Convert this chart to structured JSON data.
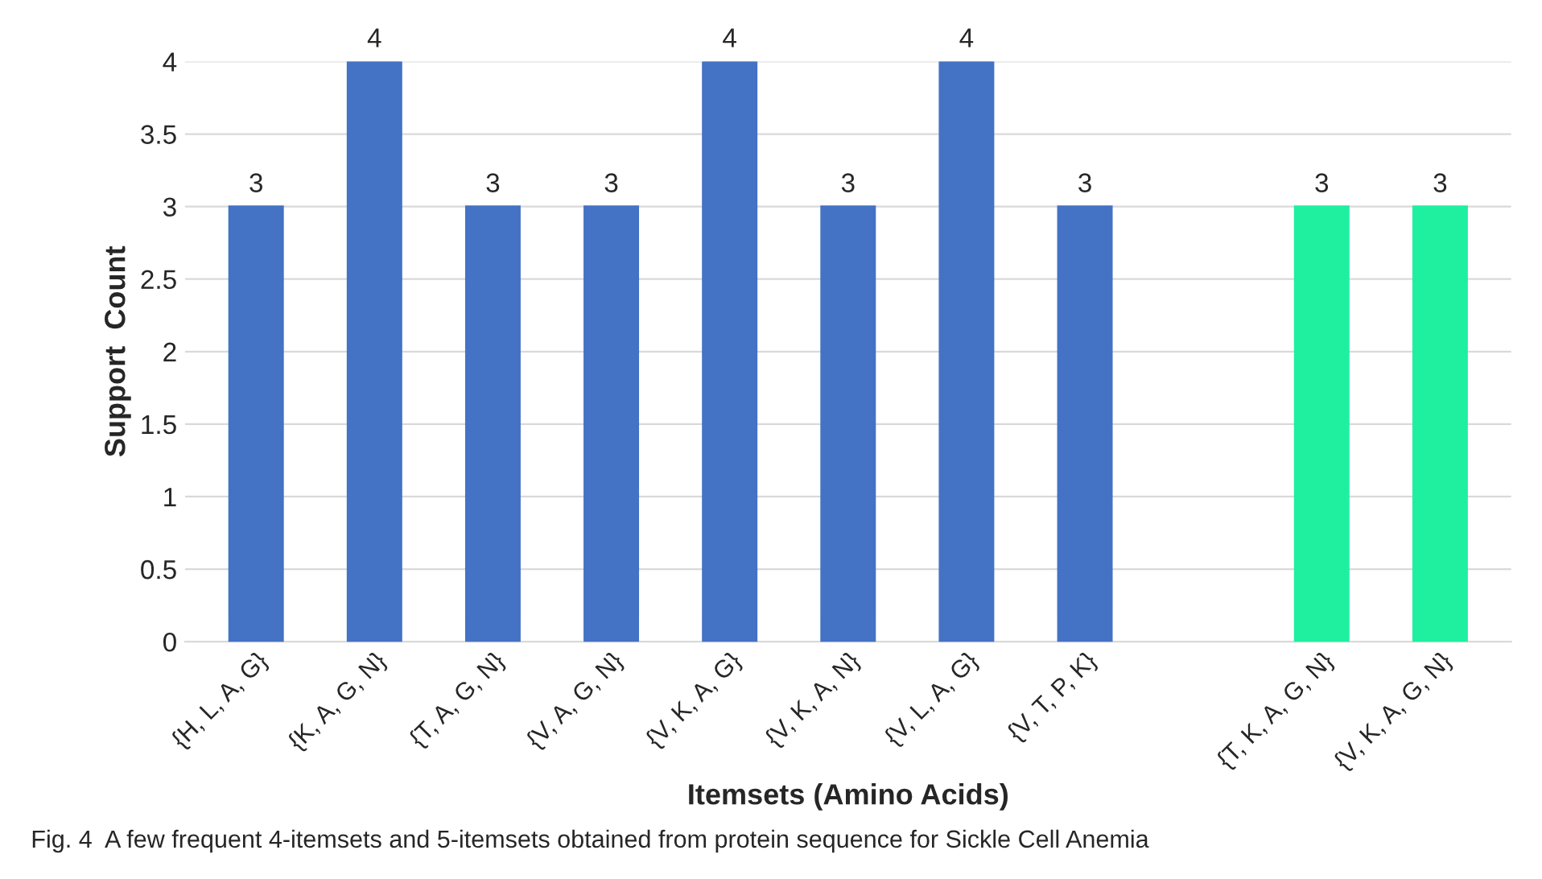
{
  "chart_data": {
    "type": "bar",
    "xlabel": "Itemsets (Amino Acids)",
    "ylabel": "Support  Count",
    "categories": [
      "{H, L, A, G}",
      "{K, A, G, N}",
      "{T, A, G, N}",
      "{V, A, G, N}",
      "{V, K, A, G}",
      "{V, K, A, N}",
      "{V, L, A, G}",
      "{V, T, P, K}",
      null,
      "{T, K, A, G, N}",
      "{V, K, A, G, N}"
    ],
    "values": [
      3,
      4,
      3,
      3,
      4,
      3,
      4,
      3,
      null,
      3,
      3
    ],
    "colors": [
      "#4472c4",
      "#4472c4",
      "#4472c4",
      "#4472c4",
      "#4472c4",
      "#4472c4",
      "#4472c4",
      "#4472c4",
      "#4472c4",
      "#1ef0a0",
      "#1ef0a0"
    ],
    "data_labels": true,
    "ylim": [
      0,
      4
    ],
    "yticks": [
      0,
      0.5,
      1,
      1.5,
      2,
      2.5,
      3,
      3.5,
      4
    ],
    "grid": "y",
    "annotations": [
      "Fig. 4  A few frequent 4-itemsets and 5-itemsets obtained from protein sequence for Sickle Cell Anemia"
    ]
  }
}
